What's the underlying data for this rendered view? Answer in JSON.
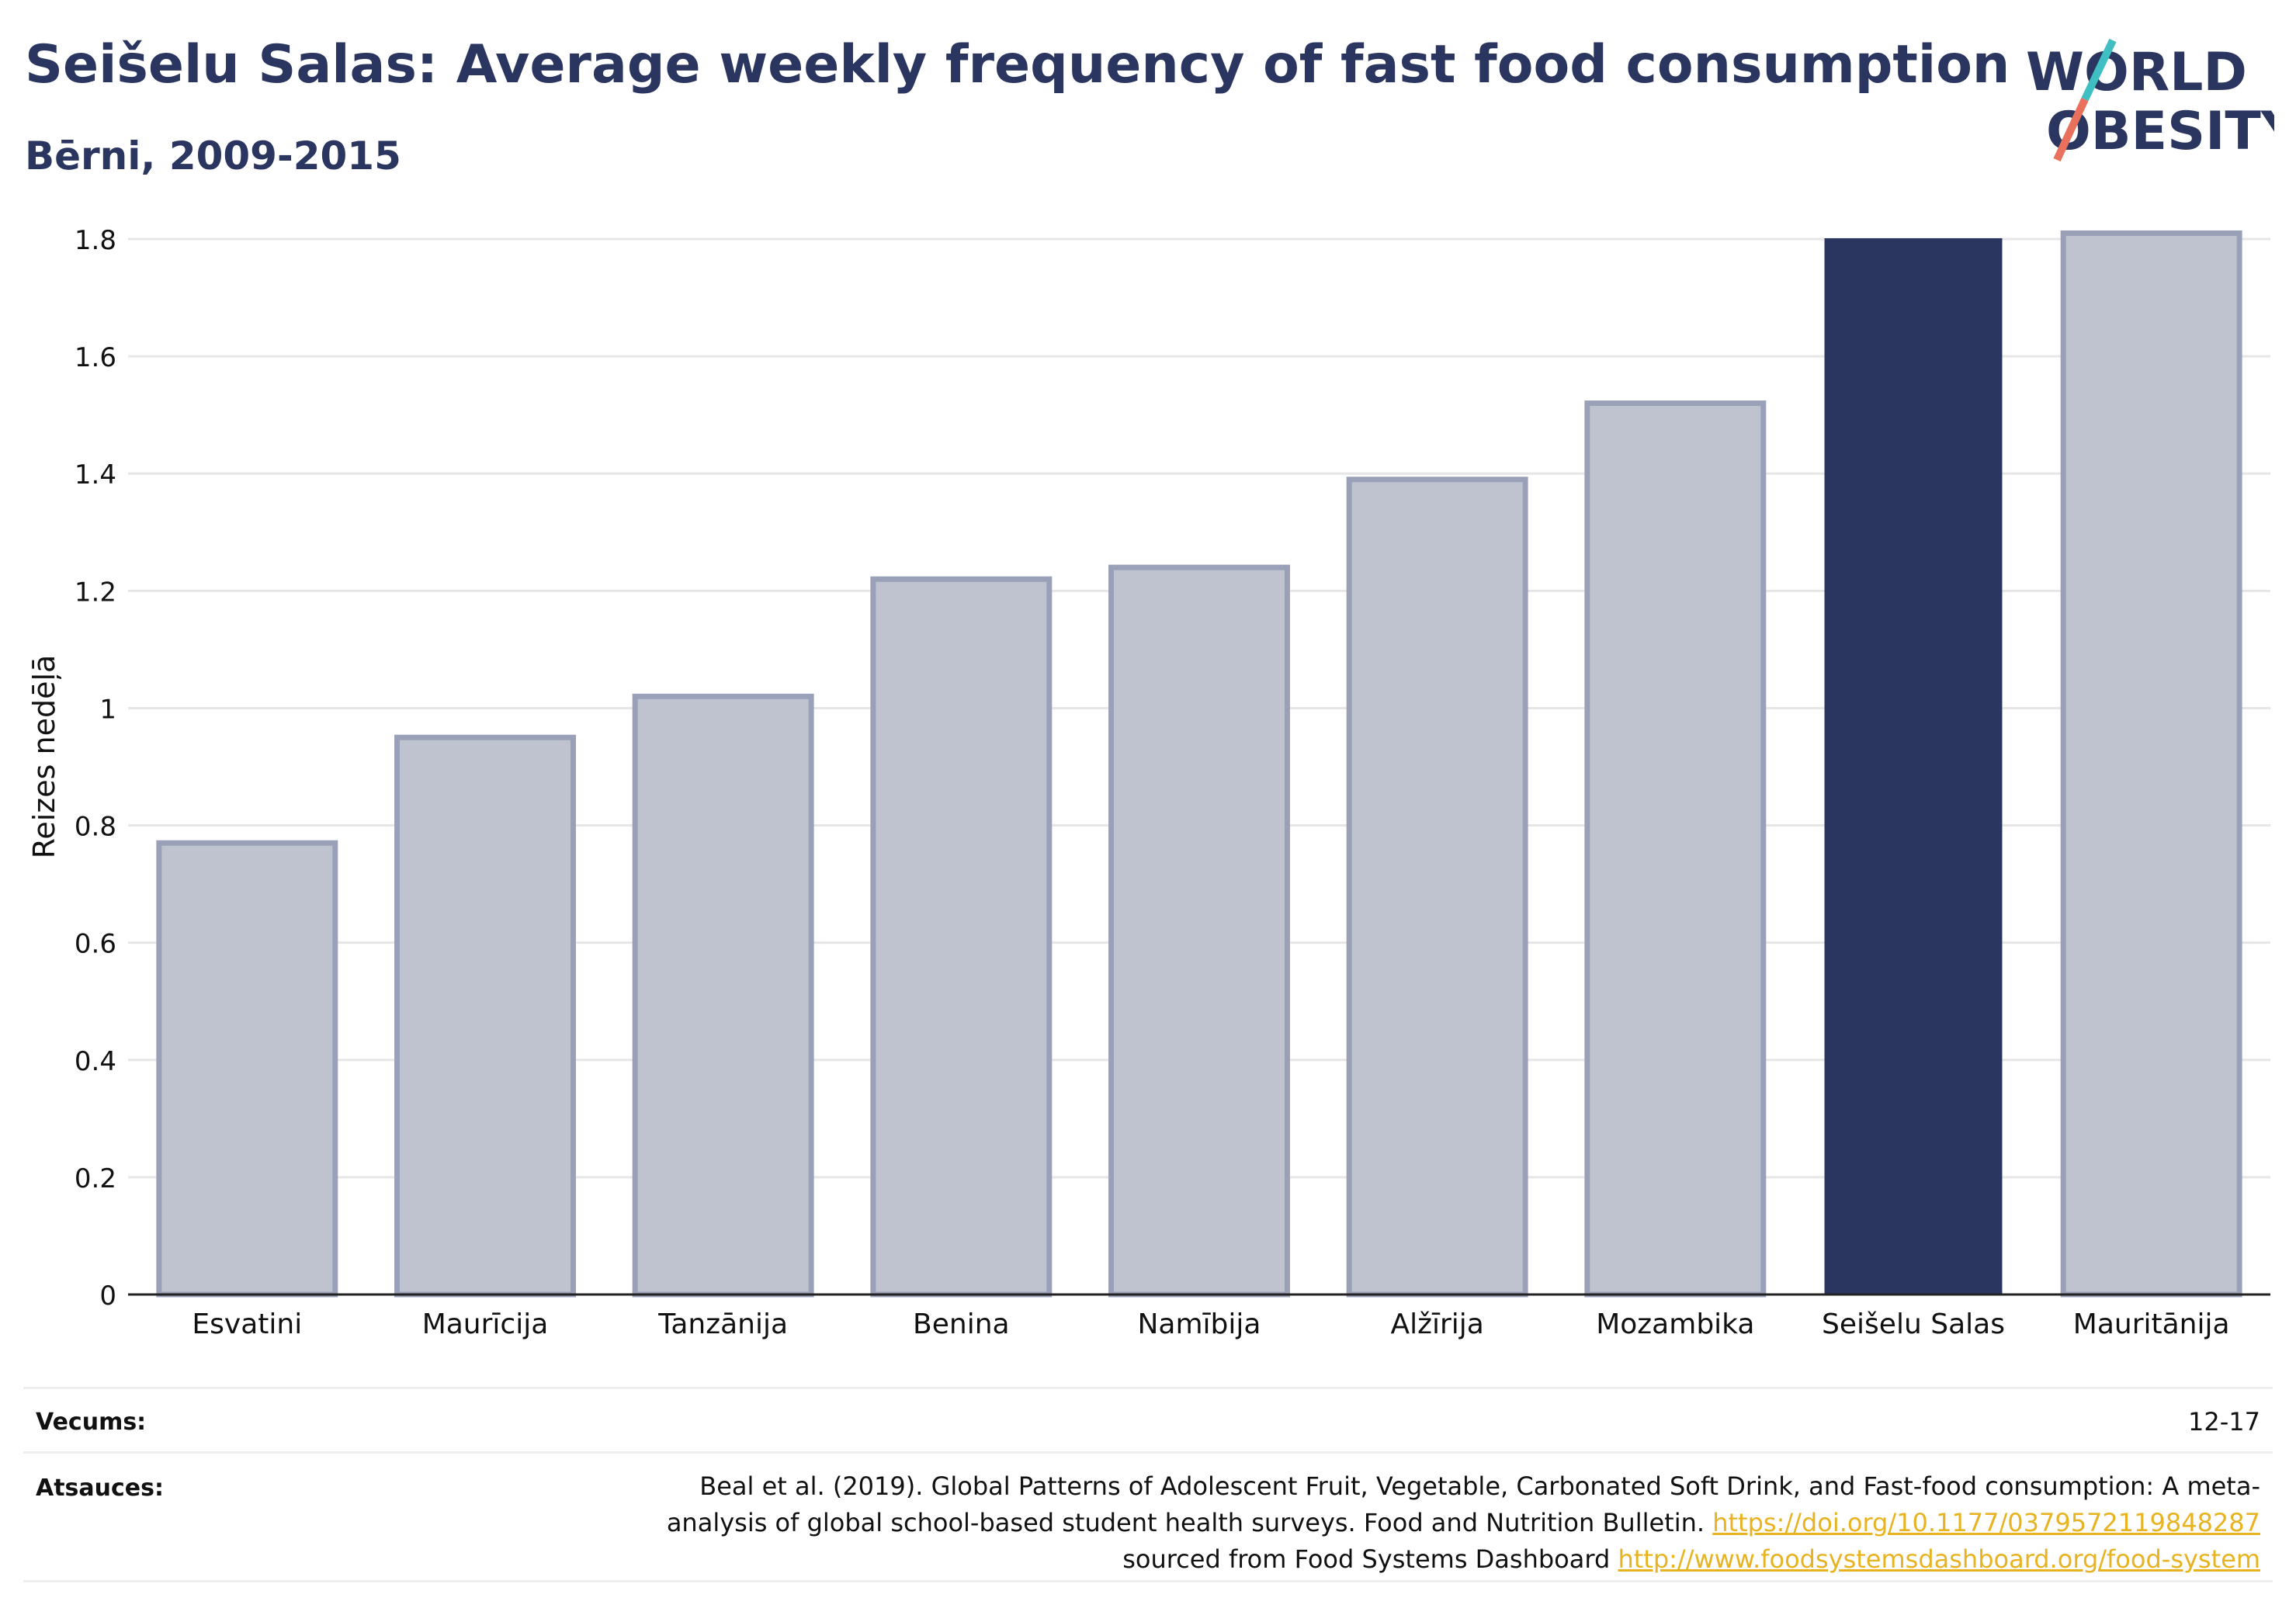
{
  "header": {
    "title": "Seišelu Salas: Average weekly frequency of fast food consumption",
    "subtitle": "Bērni, 2009-2015"
  },
  "logo": {
    "line1": "WORLD",
    "line2": "OBESITY",
    "colors": {
      "text": "#2a3560",
      "slash_teal": "#3fbfc2",
      "slash_coral": "#e9705c"
    }
  },
  "colors": {
    "highlight_bar": "#2a3560",
    "other_bar_fill": "#bfc3cf",
    "other_bar_stroke": "#9aa0b8",
    "grid": "#e6e6e6",
    "link": "#e8b321"
  },
  "chart_data": {
    "type": "bar",
    "title": "Seišelu Salas: Average weekly frequency of fast food consumption",
    "subtitle": "Bērni, 2009-2015",
    "xlabel": "",
    "ylabel": "Reizes nedēļā",
    "categories": [
      "Esvatini",
      "Maurīcija",
      "Tanzānija",
      "Benina",
      "Namībija",
      "Alžīrija",
      "Mozambika",
      "Seišelu Salas",
      "Mauritānija"
    ],
    "values": [
      0.77,
      0.95,
      1.02,
      1.22,
      1.24,
      1.39,
      1.52,
      1.8,
      1.81
    ],
    "highlight": "Seišelu Salas",
    "ylim": [
      0,
      1.8
    ],
    "yticks": [
      0,
      0.2,
      0.4,
      0.6,
      0.8,
      1,
      1.2,
      1.4,
      1.6,
      1.8
    ],
    "ytick_labels": [
      "0",
      "0.2",
      "0.4",
      "0.6",
      "0.8",
      "1",
      "1.2",
      "1.4",
      "1.6",
      "1.8"
    ],
    "grid": true,
    "legend": "none"
  },
  "footer": {
    "age_label": "Vecums:",
    "age_value": "12-17",
    "sources_label": "Atsauces:",
    "sources_text_1": "Beal et al. (2019). Global Patterns of Adolescent Fruit, Vegetable, Carbonated Soft Drink, and Fast-food consumption: A meta-analysis of global school-based student health surveys. Food and Nutrition Bulletin. ",
    "sources_link_1": "https://doi.org/10.1177/0379572119848287",
    "sources_text_2": " sourced from Food Systems Dashboard ",
    "sources_link_2": "http://www.foodsystemsdashboard.org/food-system"
  }
}
